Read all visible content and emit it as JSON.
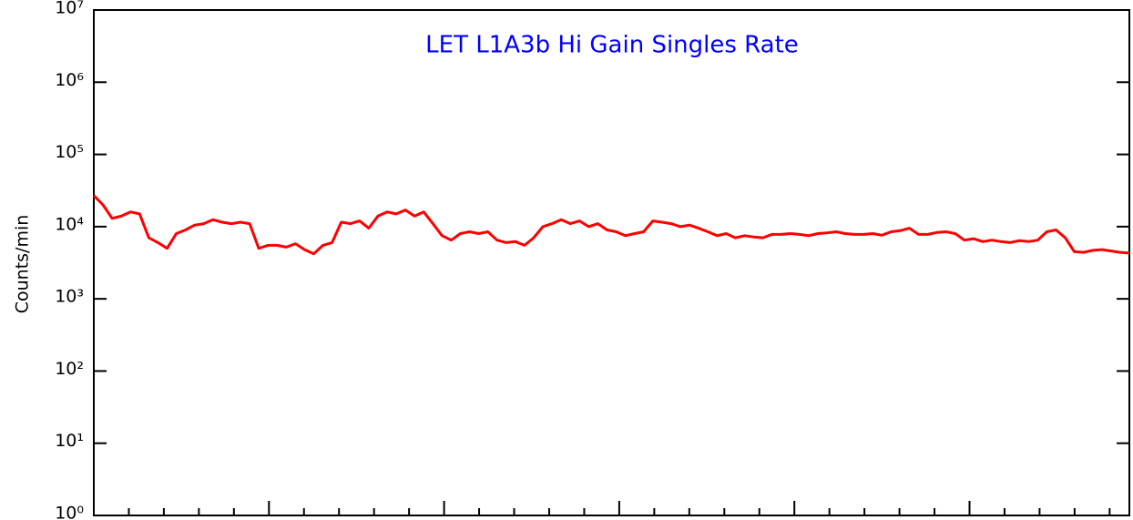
{
  "chart_data": {
    "type": "line",
    "title": "LET L1A3b Hi Gain Singles Rate",
    "y_label": "Counts/min",
    "log_y": true,
    "ylim": [
      1,
      10000000
    ],
    "yticks": [
      {
        "value": 1,
        "label": "10⁰"
      },
      {
        "value": 10,
        "label": "10¹"
      },
      {
        "value": 100,
        "label": "10²"
      },
      {
        "value": 1000,
        "label": "10³"
      },
      {
        "value": 10000,
        "label": "10⁴"
      },
      {
        "value": 100000,
        "label": "10⁵"
      },
      {
        "value": 1000000,
        "label": "10⁶"
      },
      {
        "value": 10000000,
        "label": "10⁷"
      }
    ],
    "series": [
      {
        "color": "#ff0000",
        "values": [
          27000,
          20000,
          13000,
          14000,
          16000,
          15000,
          7000,
          6000,
          5000,
          8000,
          9000,
          10500,
          11000,
          12500,
          11500,
          11000,
          11500,
          11000,
          5000,
          5500,
          5500,
          5200,
          5800,
          4800,
          4200,
          5500,
          6000,
          11500,
          11000,
          12000,
          9500,
          14000,
          16000,
          15000,
          17000,
          14000,
          16000,
          11000,
          7500,
          6500,
          8000,
          8500,
          8000,
          8500,
          6500,
          6000,
          6200,
          5500,
          7000,
          10000,
          11000,
          12500,
          11000,
          12000,
          10000,
          11000,
          9000,
          8500,
          7500,
          8000,
          8500,
          12000,
          11500,
          11000,
          10000,
          10500,
          9500,
          8500,
          7500,
          8000,
          7000,
          7500,
          7200,
          7000,
          7800,
          7800,
          8000,
          7800,
          7500,
          8000,
          8200,
          8500,
          8000,
          7800,
          7800,
          8000,
          7600,
          8500,
          8800,
          9500,
          7800,
          7800,
          8300,
          8500,
          8000,
          6500,
          6800,
          6200,
          6500,
          6200,
          6000,
          6400,
          6200,
          6500,
          8500,
          9000,
          7000,
          4500,
          4400,
          4700,
          4800,
          4600,
          4400,
          4300
        ]
      }
    ]
  }
}
